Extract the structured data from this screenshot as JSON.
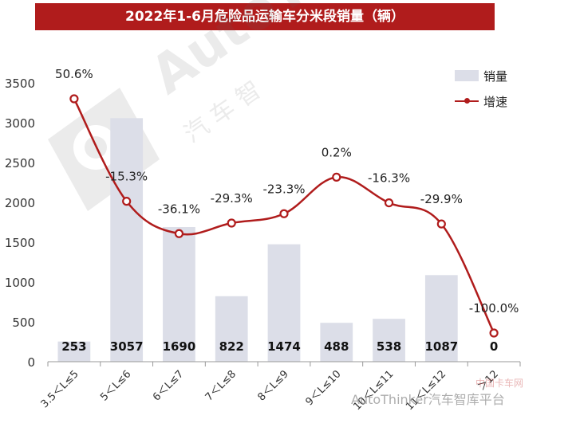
{
  "title": "2022年1-6月危险品运输车分米段销量（辆）",
  "legend": {
    "bar_label": "销量",
    "line_label": "增速"
  },
  "watermark": {
    "brand": "AutoThinker汽车智库平台",
    "logo_text": "AutoThinker",
    "logo_sub": "汽 车 智",
    "corner": "中国卡车网"
  },
  "colors": {
    "bar": "#dcdee8",
    "line": "#b01c1c",
    "title_bg": "#b01c1c",
    "point_fill": "#ffffff"
  },
  "chart_data": {
    "type": "bar+line",
    "title": "2022年1-6月危险品运输车分米段销量（辆）",
    "categories": [
      "3.5＜L≤5",
      "5＜L≤6",
      "6＜L≤7",
      "7＜L≤8",
      "8＜L≤9",
      "9＜L≤10",
      "10＜L≤11",
      "11＜L≤12",
      "＞12"
    ],
    "series": [
      {
        "name": "销量",
        "type": "bar",
        "values": [
          253,
          3057,
          1690,
          822,
          1474,
          488,
          538,
          1087,
          0
        ],
        "labels": [
          "253",
          "3057",
          "1690",
          "822",
          "1474",
          "488",
          "538",
          "1087",
          "0"
        ]
      },
      {
        "name": "增速",
        "type": "line",
        "values": [
          50.6,
          -15.3,
          -36.1,
          -29.3,
          -23.3,
          0.2,
          -16.3,
          -29.9,
          -100.0
        ],
        "labels": [
          "50.6%",
          "-15.3%",
          "-36.1%",
          "-29.3%",
          "-23.3%",
          "0.2%",
          "-16.3%",
          "-29.9%",
          "-100.0%"
        ]
      }
    ],
    "yticks": [
      "0",
      "500",
      "1000",
      "1500",
      "2000",
      "2500",
      "3000",
      "3500"
    ],
    "ylim": [
      0,
      3500
    ],
    "grid": false,
    "legend_position": "top-right"
  }
}
